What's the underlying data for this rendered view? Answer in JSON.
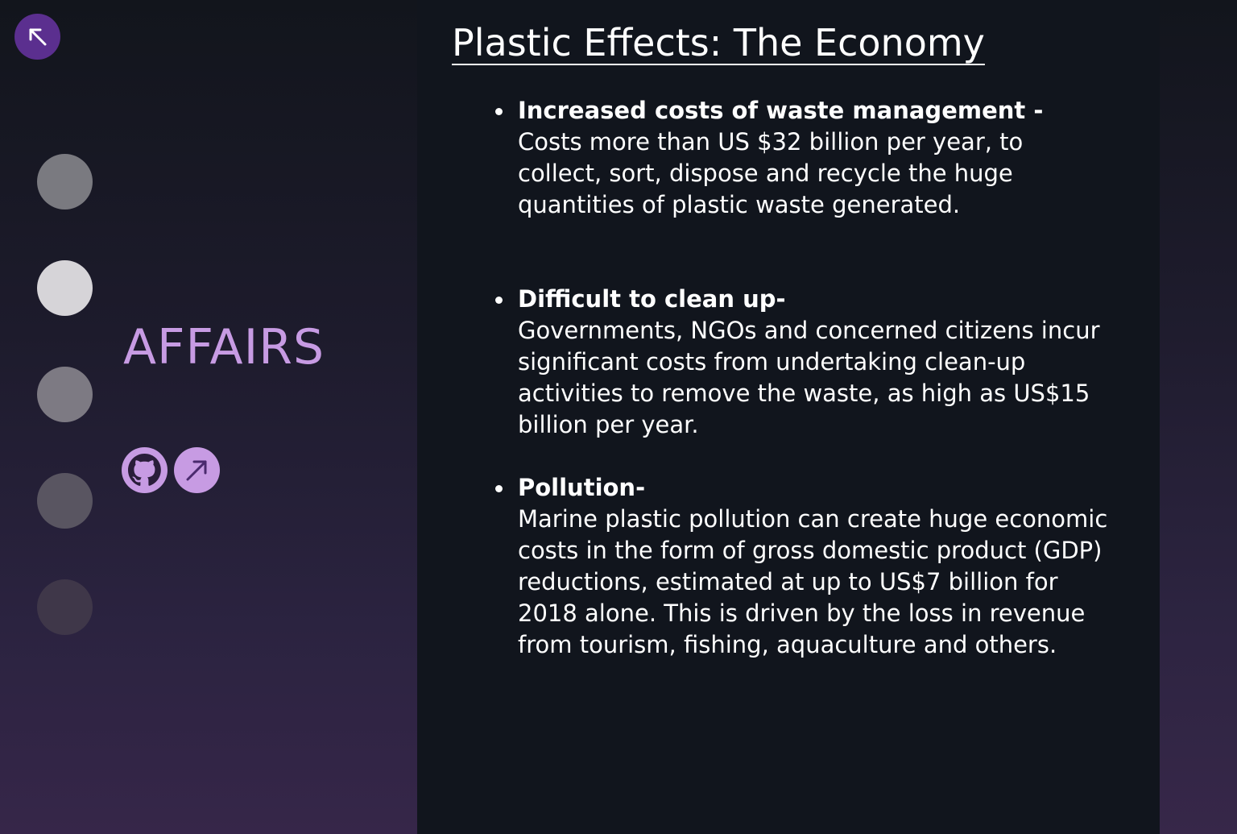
{
  "nav": {
    "back_icon": "arrow-up-left-icon",
    "dots": [
      {
        "name": "section-dot-1",
        "color": "#7a7a80"
      },
      {
        "name": "section-dot-2",
        "color": "#d6d4d8",
        "active": true
      },
      {
        "name": "section-dot-3",
        "color": "#7d7a83"
      },
      {
        "name": "section-dot-4",
        "color": "#595561"
      },
      {
        "name": "section-dot-5",
        "color": "#3f3749"
      }
    ]
  },
  "sidebar": {
    "section_title": "AFFAIRS",
    "links": [
      {
        "icon": "github-icon"
      },
      {
        "icon": "arrow-up-right-icon"
      }
    ]
  },
  "main": {
    "title": "Plastic Effects: The Economy",
    "bullets": [
      {
        "heading": "Increased costs of waste management -",
        "body": "Costs more than US $32 billion per year, to collect, sort, dispose and recycle the huge quantities of plastic waste generated."
      },
      {
        "heading": "Difficult to clean up-",
        "body": "Governments, NGOs and concerned citizens incur significant costs from undertaking clean-up activities to remove the waste, as high as US$15 billion per year."
      },
      {
        "heading": "Pollution-",
        "body": "Marine plastic pollution can create huge economic costs in the form of gross domestic product (GDP) reductions, estimated at up to US$7 billion for 2018 alone. This is driven by the loss in revenue from tourism, fishing, aquaculture and others."
      }
    ]
  },
  "colors": {
    "accent": "#c79be3",
    "back_button": "#5b2f8f",
    "panel_bg": "#11151d"
  }
}
